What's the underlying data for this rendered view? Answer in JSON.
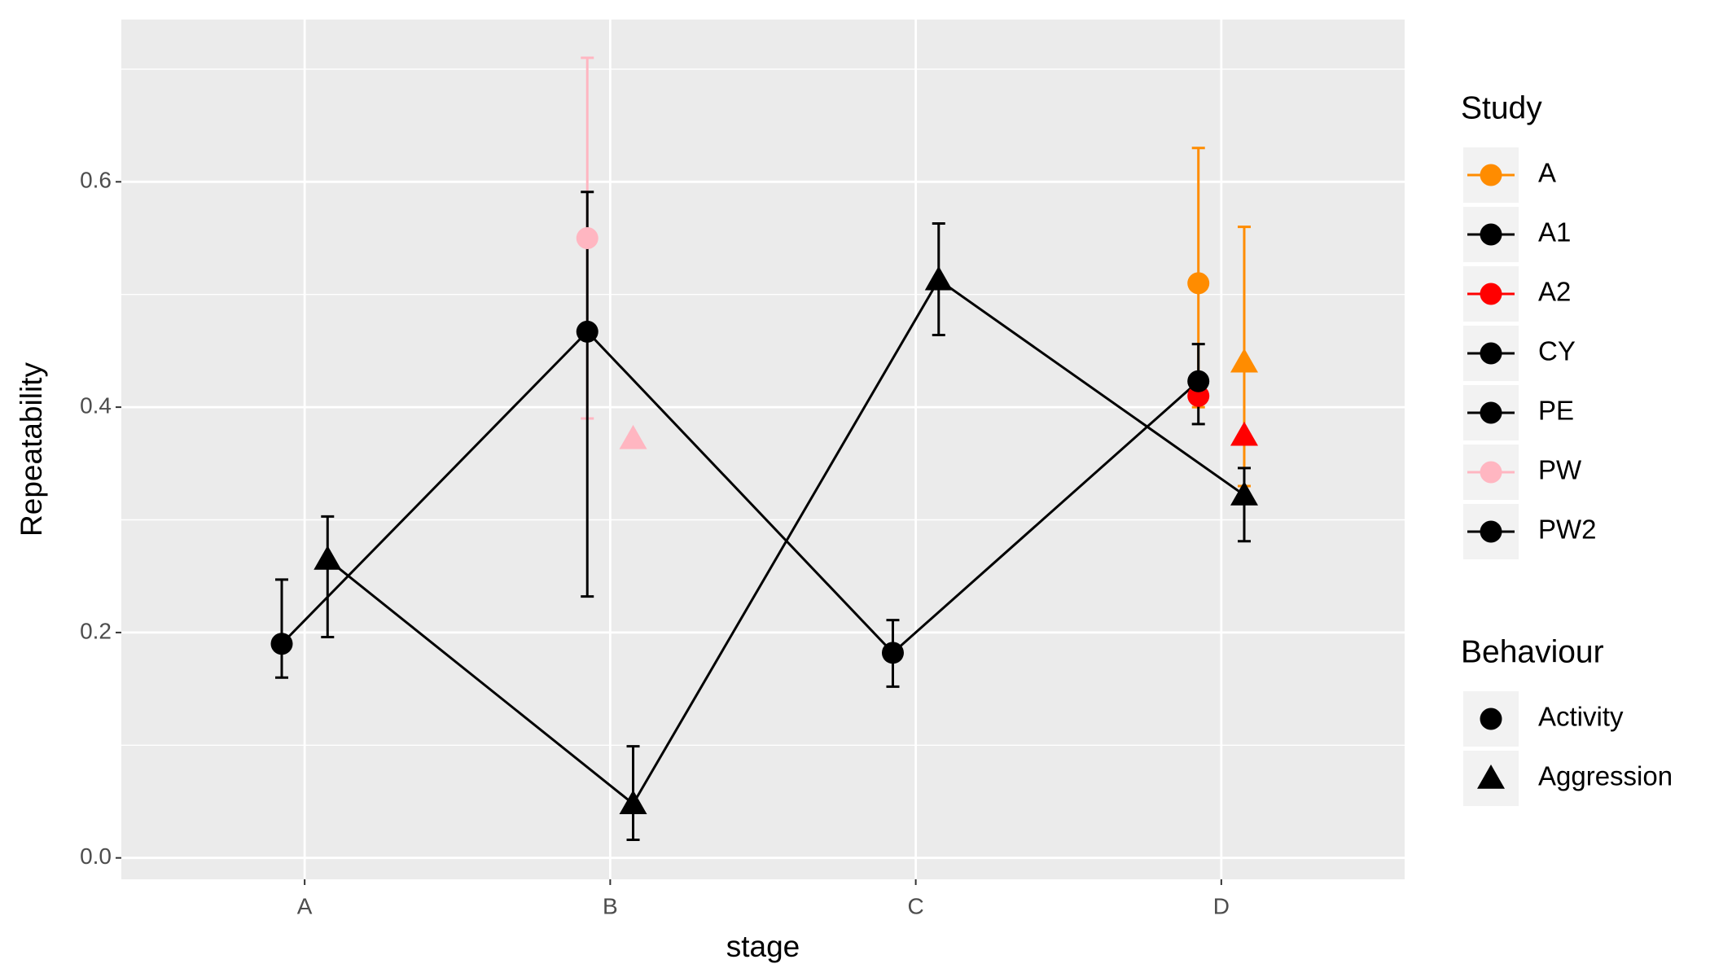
{
  "chart_data": {
    "type": "pointrange",
    "x_label": "stage",
    "y_label": "Repeatability",
    "categories": [
      "A",
      "B",
      "C",
      "D"
    ],
    "ylim": [
      -0.019,
      0.744
    ],
    "yticks": [
      {
        "value": 0,
        "label": "0.0"
      },
      0.2,
      0.4,
      0.6
    ],
    "minor_yticks": [
      0.1,
      0.3,
      0.5,
      0.7
    ],
    "grid": true,
    "study_legend": {
      "title": "Study",
      "names": [
        "A",
        "A1",
        "A2",
        "CY",
        "PE",
        "PW",
        "PW2"
      ],
      "colors": [
        "#FF8C00",
        "#000000",
        "#FF0000",
        "#000000",
        "#000000",
        "#FFB6C1",
        "#000000"
      ]
    },
    "behaviour_legend": {
      "title": "Behaviour",
      "names": [
        "Activity",
        "Aggression"
      ],
      "shapes": [
        "circle",
        "triangle"
      ]
    },
    "series": [
      {
        "behaviour": 0,
        "color": "#000000",
        "values": [
          0.19,
          0.467,
          0.182,
          0.423
        ],
        "lower": [
          0.16,
          0.232,
          0.152,
          0.385
        ],
        "upper": [
          0.247,
          0.591,
          0.211,
          0.456
        ]
      },
      {
        "behaviour": 1,
        "color": "#000000",
        "values": [
          0.265,
          0.048,
          0.513,
          0.322
        ],
        "lower": [
          0.196,
          0.016,
          0.464,
          0.281
        ],
        "upper": [
          0.303,
          0.099,
          0.563,
          0.346
        ]
      }
    ],
    "points": [
      {
        "stage": 1,
        "behaviour": 0,
        "study": 5,
        "value": 0.55,
        "lower": 0.39,
        "upper": 0.71
      },
      {
        "stage": 1,
        "behaviour": 1,
        "study": 5,
        "value": 0.372
      },
      {
        "stage": 3,
        "behaviour": 0,
        "study": 0,
        "value": 0.51,
        "lower": 0.4,
        "upper": 0.63
      },
      {
        "stage": 3,
        "behaviour": 1,
        "study": 0,
        "value": 0.44,
        "lower": 0.33,
        "upper": 0.56
      },
      {
        "stage": 3,
        "behaviour": 0,
        "study": 2,
        "value": 0.41
      },
      {
        "stage": 3,
        "behaviour": 1,
        "study": 2,
        "value": 0.375
      }
    ]
  }
}
